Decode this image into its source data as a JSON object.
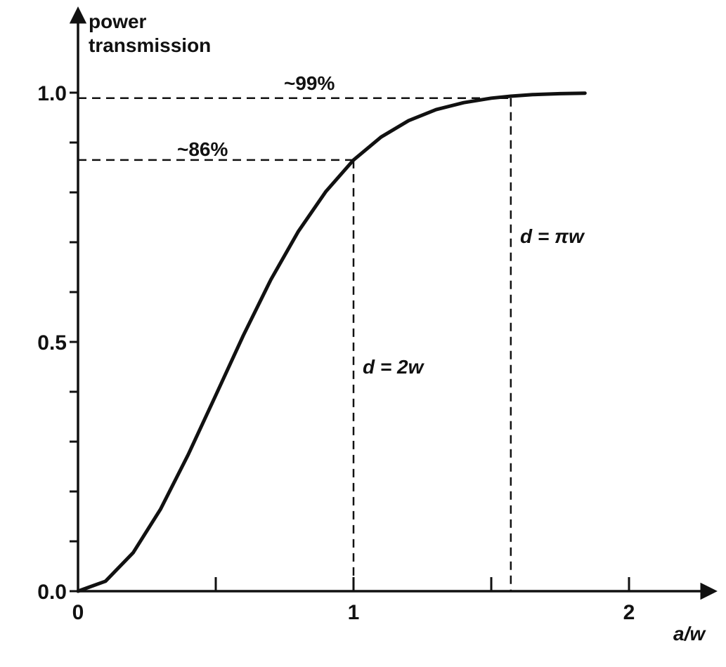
{
  "chart_data": {
    "type": "line",
    "ylabel_line1": "power",
    "ylabel_line2": "transmission",
    "xlabel": "a/w",
    "x_ticks": [
      0,
      1,
      2
    ],
    "x_tick_labels": [
      "0",
      "1",
      "2"
    ],
    "x_minor_ticks": [
      0.5,
      1.5
    ],
    "y_ticks": [
      0.0,
      0.5,
      1.0
    ],
    "y_tick_labels": [
      "0.0",
      "0.5",
      "1.0"
    ],
    "y_minor_ticks": [
      0.1,
      0.2,
      0.3,
      0.4,
      0.6,
      0.7,
      0.8,
      0.9
    ],
    "xlim": [
      0,
      2.25
    ],
    "ylim": [
      0,
      1.1
    ],
    "grid": false,
    "series": [
      {
        "x": [
          0,
          0.1,
          0.2,
          0.3,
          0.4,
          0.5,
          0.6,
          0.7,
          0.8,
          0.9,
          1.0,
          1.1,
          1.2,
          1.3,
          1.4,
          1.5,
          1.571,
          1.65,
          1.75,
          1.84
        ],
        "y": [
          0,
          0.02,
          0.077,
          0.165,
          0.274,
          0.393,
          0.513,
          0.625,
          0.722,
          0.802,
          0.865,
          0.911,
          0.944,
          0.966,
          0.98,
          0.989,
          0.993,
          0.996,
          0.998,
          0.999
        ]
      }
    ],
    "annotations": {
      "label_86": "~86%",
      "label_99": "~99%",
      "label_2w": "d = 2w",
      "label_piw": "d = πw",
      "marker_86": {
        "x": 1.0,
        "y": 0.865
      },
      "marker_99": {
        "x": 1.571,
        "y": 0.989
      }
    }
  }
}
